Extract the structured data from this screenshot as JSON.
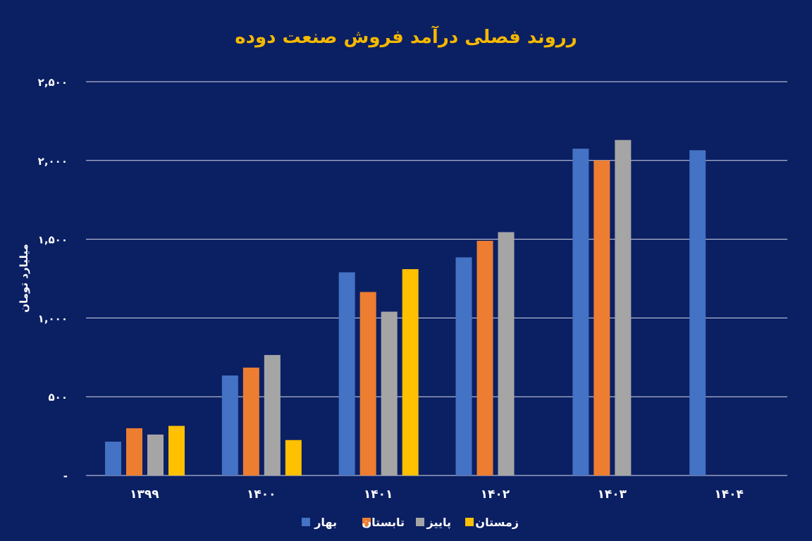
{
  "chart_data": {
    "type": "bar",
    "title": "رروند فصلی درآمد فروش صنعت دوده",
    "ylabel": "میلیارد تومان",
    "xlabel": "",
    "ylim": [
      0,
      2500
    ],
    "yticks": [
      {
        "value": 0,
        "label": "-"
      },
      {
        "value": 500,
        "label": "۵۰۰"
      },
      {
        "value": 1000,
        "label": "۱,۰۰۰"
      },
      {
        "value": 1500,
        "label": "۱,۵۰۰"
      },
      {
        "value": 2000,
        "label": "۲,۰۰۰"
      },
      {
        "value": 2500,
        "label": "۲,۵۰۰"
      }
    ],
    "categories": [
      "۱۳۹۹",
      "۱۴۰۰",
      "۱۴۰۱",
      "۱۴۰۲",
      "۱۴۰۳",
      "۱۴۰۴"
    ],
    "series": [
      {
        "name": "بهار",
        "color": "#4472c4",
        "values": [
          215,
          635,
          1290,
          1385,
          2075,
          2065
        ]
      },
      {
        "name": "تابستان",
        "color": "#ed7d31",
        "values": [
          300,
          685,
          1165,
          1490,
          2000,
          null
        ]
      },
      {
        "name": "پاییز",
        "color": "#a5a5a5",
        "values": [
          260,
          765,
          1040,
          1545,
          2130,
          null
        ]
      },
      {
        "name": "زمستان",
        "color": "#ffc000",
        "values": [
          315,
          225,
          1310,
          null,
          null,
          null
        ]
      }
    ],
    "grid": true,
    "legend_position": "bottom"
  }
}
